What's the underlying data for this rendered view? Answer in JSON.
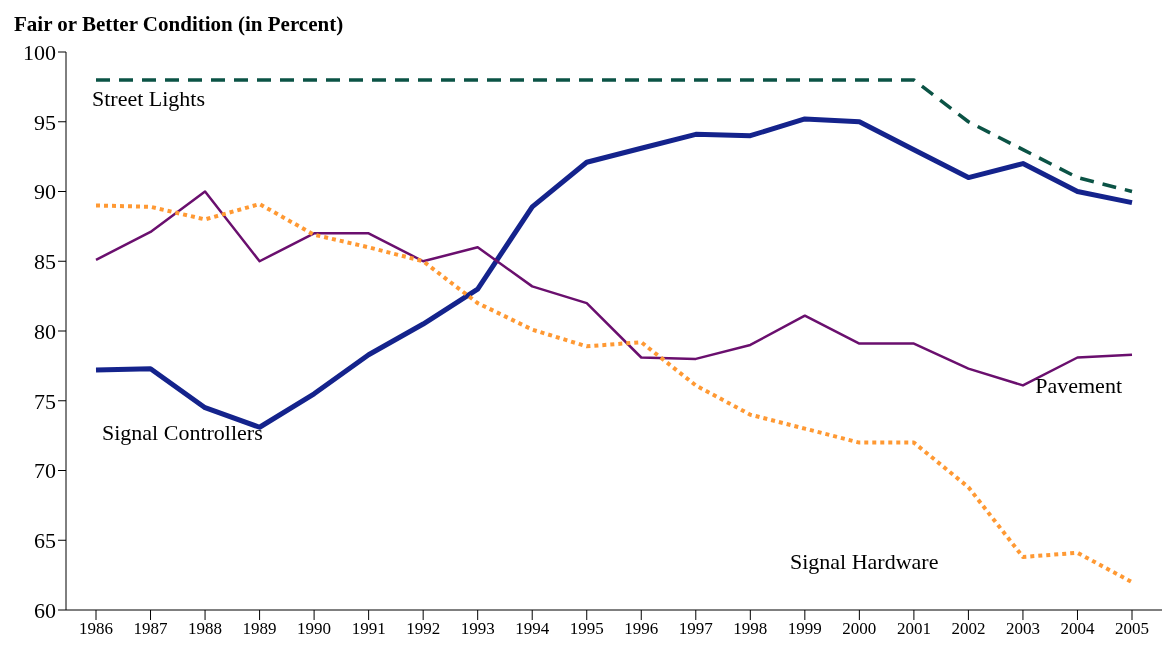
{
  "chart_data": {
    "type": "line",
    "ylabel": "Fair or Better Condition (in Percent)",
    "categories": [
      "1986",
      "1987",
      "1988",
      "1989",
      "1990",
      "1991",
      "1992",
      "1993",
      "1994",
      "1995",
      "1996",
      "1997",
      "1998",
      "1999",
      "2000",
      "2001",
      "2002",
      "2003",
      "2004",
      "2005"
    ],
    "series": [
      {
        "name": "Street Lights",
        "color": "#0b5345",
        "line_style": "dashed",
        "values": [
          98,
          98,
          98,
          98,
          98,
          98,
          98,
          98,
          98,
          98,
          98,
          98,
          98,
          98,
          98,
          98,
          95,
          93,
          91,
          90
        ]
      },
      {
        "name": "Signal Controllers",
        "color": "#14238c",
        "line_style": "solid",
        "values": [
          77.2,
          77.3,
          74.5,
          73.1,
          75.5,
          78.3,
          80.5,
          83,
          88.9,
          92.1,
          93.1,
          94.1,
          94,
          95.2,
          95,
          93,
          91,
          92,
          90,
          89.2
        ]
      },
      {
        "name": "Pavement",
        "color": "#6a0f6e",
        "line_style": "solid",
        "values": [
          85.1,
          87.1,
          90,
          85,
          87,
          87,
          85,
          86,
          83.2,
          82,
          78.1,
          78,
          79,
          81.1,
          79.1,
          79.1,
          77.3,
          76.1,
          78.1,
          78.3
        ]
      },
      {
        "name": "Signal Hardware",
        "color": "#ff9933",
        "line_style": "dotted",
        "values": [
          89,
          88.9,
          88,
          89.1,
          86.9,
          86,
          85,
          82,
          80.1,
          78.9,
          79.2,
          76.1,
          74,
          73,
          72,
          72,
          68.8,
          63.8,
          64.1,
          62
        ]
      }
    ],
    "ylim": [
      60,
      100
    ],
    "yticks": [
      60,
      65,
      70,
      75,
      80,
      85,
      90,
      95,
      100
    ],
    "grid": false,
    "legend": false,
    "marker": "none"
  }
}
